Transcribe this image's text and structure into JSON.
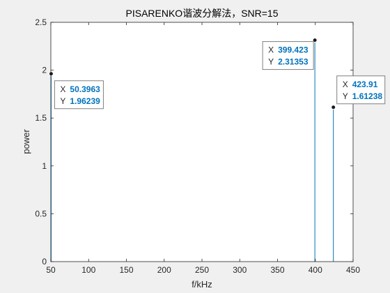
{
  "chart_data": {
    "type": "stem",
    "title": "PISARENKO谐波分解法，SNR=15",
    "xlabel": "f/kHz",
    "ylabel": "power",
    "xlim": [
      50,
      450
    ],
    "ylim": [
      0,
      2.5
    ],
    "x_ticks": [
      "50",
      "100",
      "150",
      "200",
      "250",
      "300",
      "350",
      "400",
      "450"
    ],
    "y_ticks": [
      "0",
      "0.5",
      "1",
      "1.5",
      "2",
      "2.5"
    ],
    "series": [
      {
        "x": [
          50.3963,
          399.423,
          423.91
        ],
        "y": [
          1.96239,
          2.31353,
          1.61238
        ]
      }
    ],
    "datatips": [
      {
        "x_label": "X",
        "x_value": "50.3963",
        "y_label": "Y",
        "y_value": "1.96239"
      },
      {
        "x_label": "X",
        "x_value": "399.423",
        "y_label": "Y",
        "y_value": "2.31353"
      },
      {
        "x_label": "X",
        "x_value": "423.91",
        "y_label": "Y",
        "y_value": "1.61238"
      }
    ],
    "colors": {
      "stem": "#0072bd",
      "tip_value": "#0072bd",
      "background": "#f0f0f0",
      "axes_bg": "#ffffff"
    },
    "grid": false,
    "legend": "none"
  }
}
